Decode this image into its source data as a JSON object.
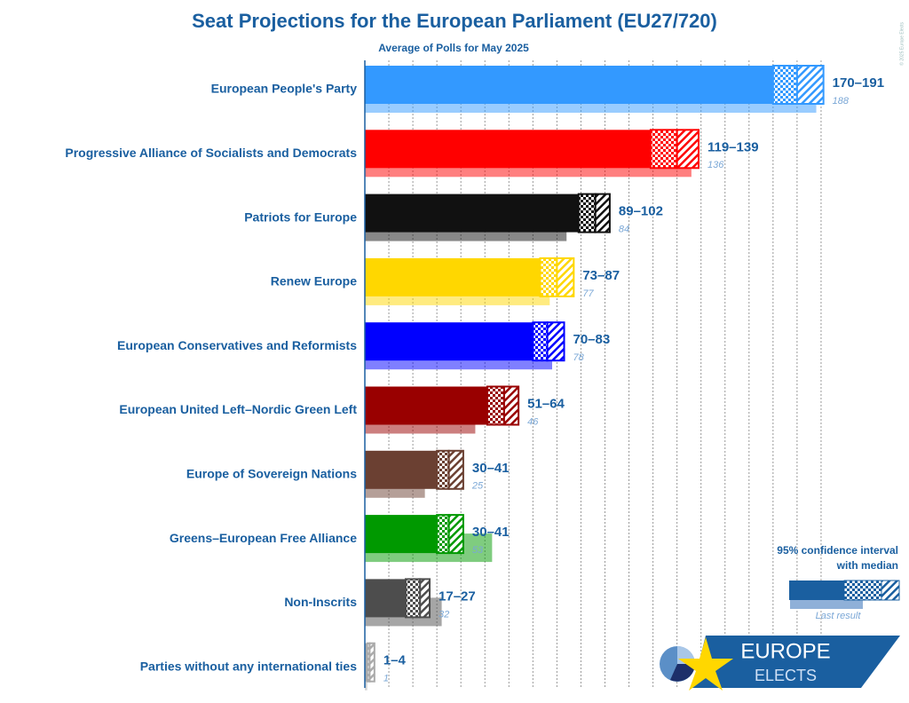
{
  "chart_data": {
    "type": "interval-bar",
    "title": "Seat Projections for the European Parliament (EU27/720)",
    "subtitle": "Average of Polls for May 2025",
    "categories": [
      "European People's Party",
      "Progressive Alliance of Socialists and Democrats",
      "Patriots for Europe",
      "Renew Europe",
      "European Conservatives and Reformists",
      "European United Left–Nordic Green Left",
      "Europe of Sovereign Nations",
      "Greens–European Free Alliance",
      "Non-Inscrits",
      "Parties without any international ties"
    ],
    "colors": [
      "#3399ff",
      "#ff0000",
      "#111111",
      "#ffd700",
      "#0000ff",
      "#990000",
      "#6b4032",
      "#009900",
      "#4d4d4d",
      "#aaaaaa"
    ],
    "low": [
      170,
      119,
      89,
      73,
      70,
      51,
      30,
      30,
      17,
      1
    ],
    "median": [
      180,
      130,
      96,
      80,
      76,
      58,
      35,
      35,
      23,
      2
    ],
    "high": [
      191,
      139,
      102,
      87,
      83,
      64,
      41,
      41,
      27,
      4
    ],
    "range_labels": [
      "170–191",
      "119–139",
      "89–102",
      "73–87",
      "70–83",
      "51–64",
      "30–41",
      "30–41",
      "17–27",
      "1–4"
    ],
    "last": [
      188,
      136,
      84,
      77,
      78,
      46,
      25,
      53,
      32,
      1
    ],
    "xlim": [
      0,
      200
    ],
    "xticks": [
      0,
      10,
      20,
      30,
      40,
      50,
      60,
      70,
      80,
      90,
      100,
      110,
      120,
      130,
      140,
      150,
      160,
      170,
      180,
      190
    ],
    "grid": true,
    "legend": {
      "title_line1": "95% confidence interval",
      "title_line2": "with median",
      "last_label": "Last result"
    },
    "logo": {
      "line1": "EUROPE",
      "line2": "ELECTS"
    },
    "credit": "© 2025 Europe Elects"
  }
}
